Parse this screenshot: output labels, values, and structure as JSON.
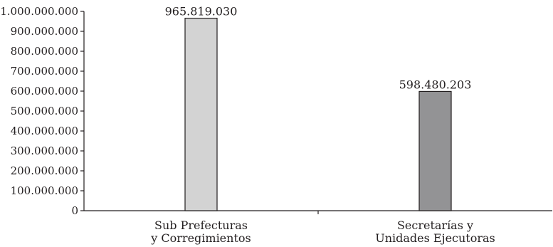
{
  "chart_data": {
    "type": "bar",
    "categories": [
      [
        "Sub Prefecturas",
        "y Corregimientos"
      ],
      [
        "Secretarías y",
        "Unidades Ejecutoras"
      ]
    ],
    "values": [
      965819030,
      598480203
    ],
    "data_labels": [
      "965.819.030",
      "598.480.203"
    ],
    "ylim": [
      0,
      1000000000
    ],
    "y_ticks": [
      0,
      100000000,
      200000000,
      300000000,
      400000000,
      500000000,
      600000000,
      700000000,
      800000000,
      900000000,
      1000000000
    ],
    "y_tick_labels": [
      "0",
      "100.000.000",
      "200.000.000",
      "300.000.000",
      "400.000.000",
      "500.000.000",
      "600.000.000",
      "700.000.000",
      "800.000.000",
      "900.000.000",
      "1.000.000.000"
    ],
    "bar_colors": [
      "#d3d3d3",
      "#939395"
    ],
    "grid": false,
    "legend": "none",
    "title": "",
    "xlabel": "",
    "ylabel": ""
  }
}
